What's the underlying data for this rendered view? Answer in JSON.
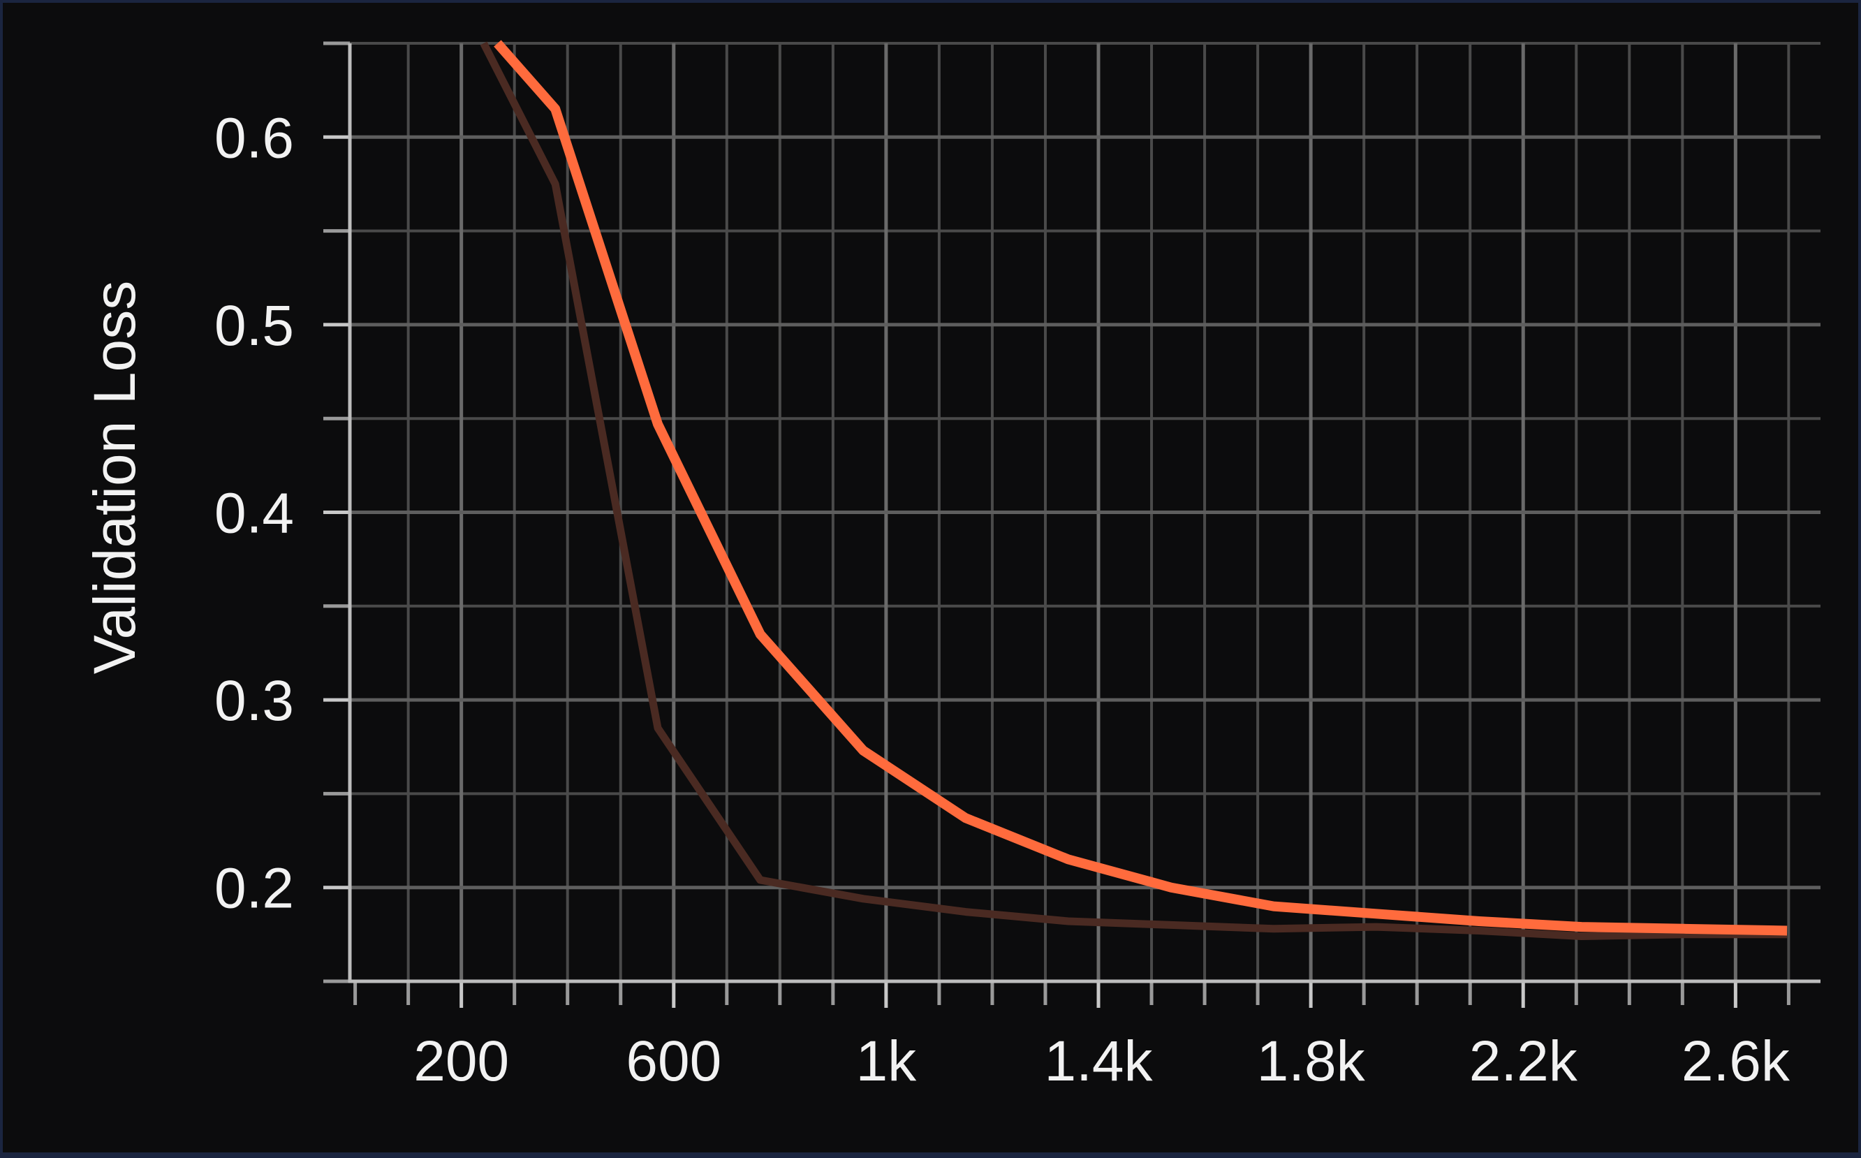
{
  "chart_data": {
    "type": "line",
    "title": "",
    "xlabel": "",
    "ylabel": "Validation Loss",
    "xlim": [
      -10,
      2760
    ],
    "ylim": [
      0.15,
      0.65
    ],
    "grid": true,
    "x_ticks": [
      {
        "value": 200,
        "label": "200"
      },
      {
        "value": 600,
        "label": "600"
      },
      {
        "value": 1000,
        "label": "1k"
      },
      {
        "value": 1400,
        "label": "1.4k"
      },
      {
        "value": 1800,
        "label": "1.8k"
      },
      {
        "value": 2200,
        "label": "2.2k"
      },
      {
        "value": 2600,
        "label": "2.6k"
      }
    ],
    "y_ticks": [
      {
        "value": 0.2,
        "label": "0.2"
      },
      {
        "value": 0.3,
        "label": "0.3"
      },
      {
        "value": 0.4,
        "label": "0.4"
      },
      {
        "value": 0.5,
        "label": "0.5"
      },
      {
        "value": 0.6,
        "label": "0.6"
      }
    ],
    "series": [
      {
        "role": "raw",
        "color": "#4a2a22",
        "x": [
          242,
          377,
          570,
          763,
          957,
          1150,
          1343,
          1537,
          1730,
          1923,
          2117,
          2310,
          2503,
          2697
        ],
        "y": [
          0.65,
          0.575,
          0.285,
          0.204,
          0.194,
          0.187,
          0.182,
          0.18,
          0.178,
          0.179,
          0.177,
          0.174,
          0.175,
          0.175
        ]
      },
      {
        "role": "smoothed",
        "color": "#ff6b3d",
        "x": [
          268,
          377,
          570,
          763,
          957,
          1150,
          1343,
          1537,
          1730,
          1923,
          2117,
          2310,
          2503,
          2697
        ],
        "y": [
          0.65,
          0.615,
          0.447,
          0.335,
          0.273,
          0.237,
          0.215,
          0.2,
          0.19,
          0.186,
          0.182,
          0.179,
          0.178,
          0.177
        ]
      }
    ]
  }
}
